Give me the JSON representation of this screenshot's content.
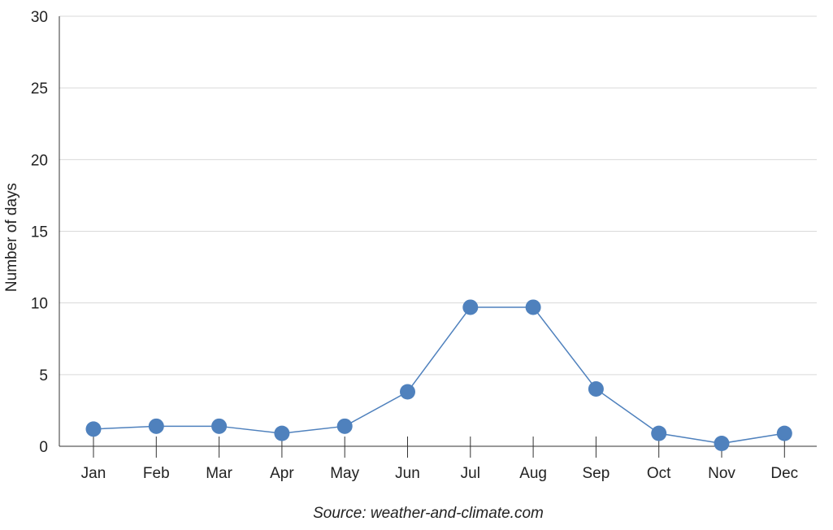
{
  "chart_data": {
    "type": "line",
    "ylabel": "Number of days",
    "xlabel": "",
    "categories": [
      "Jan",
      "Feb",
      "Mar",
      "Apr",
      "May",
      "Jun",
      "Jul",
      "Aug",
      "Sep",
      "Oct",
      "Nov",
      "Dec"
    ],
    "series": [
      {
        "values": [
          1.2,
          1.4,
          1.4,
          0.9,
          1.4,
          3.8,
          9.7,
          9.7,
          4.0,
          0.9,
          0.2,
          0.9
        ],
        "color": "#4f81bd"
      }
    ],
    "ylim": [
      0,
      30
    ],
    "yticks": [
      "0",
      "5",
      "10",
      "15",
      "20",
      "25",
      "30"
    ],
    "grid": true,
    "legend": "none",
    "source": "Source: weather-and-climate.com"
  }
}
